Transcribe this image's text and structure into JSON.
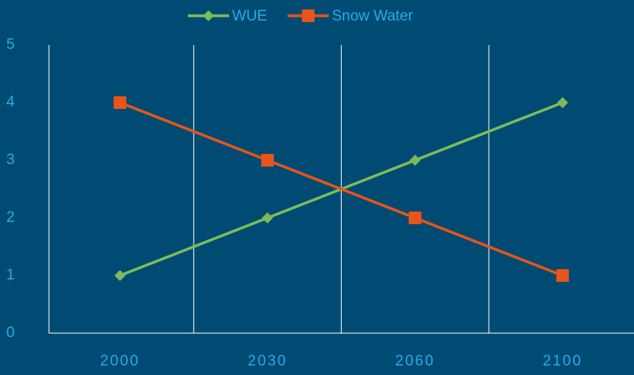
{
  "chart_data": {
    "type": "line",
    "categories": [
      "2000",
      "2030",
      "2060",
      "2100"
    ],
    "series": [
      {
        "name": "WUE",
        "color": "#7dbb5a",
        "marker": "diamond",
        "values": [
          1,
          2,
          3,
          4
        ]
      },
      {
        "name": "Snow Water",
        "color": "#e8541a",
        "marker": "square",
        "values": [
          4,
          3,
          2,
          1
        ]
      }
    ],
    "ylim": [
      0,
      5
    ],
    "yticks": [
      0,
      1,
      2,
      3,
      4,
      5
    ],
    "grid": false,
    "legend": "top"
  }
}
